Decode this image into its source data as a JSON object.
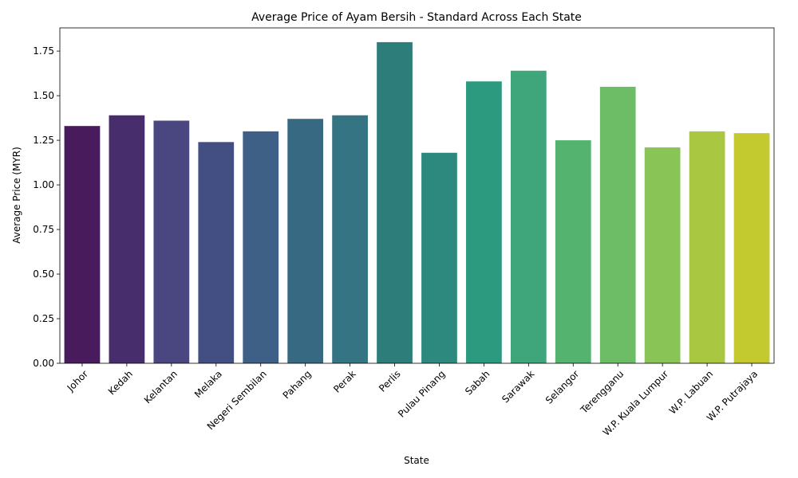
{
  "chart_data": {
    "type": "bar",
    "title": "Average Price of Ayam Bersih - Standard Across Each State",
    "xlabel": "State",
    "ylabel": "Average Price (MYR)",
    "ylim": [
      0,
      1.88
    ],
    "yticks": [
      "0.00",
      "0.25",
      "0.50",
      "0.75",
      "1.00",
      "1.25",
      "1.50",
      "1.75"
    ],
    "grid": false,
    "legend": "none",
    "categories": [
      "Johor",
      "Kedah",
      "Kelantan",
      "Melaka",
      "Negeri Sembilan",
      "Pahang",
      "Perak",
      "Perlis",
      "Pulau Pinang",
      "Sabah",
      "Sarawak",
      "Selangor",
      "Terengganu",
      "W.P. Kuala Lumpur",
      "W.P. Labuan",
      "W.P. Putrajaya"
    ],
    "values": [
      1.33,
      1.39,
      1.36,
      1.24,
      1.3,
      1.37,
      1.39,
      1.8,
      1.18,
      1.58,
      1.64,
      1.25,
      1.55,
      1.21,
      1.3,
      1.29
    ],
    "colors": [
      "#481c5c",
      "#472d6b",
      "#4a4680",
      "#434f83",
      "#3e5f86",
      "#376a82",
      "#357483",
      "#2d7d7b",
      "#2d897e",
      "#2c9a7f",
      "#3fa67c",
      "#53b36f",
      "#6dbd66",
      "#89c556",
      "#a9c741",
      "#c2ca2f"
    ]
  }
}
